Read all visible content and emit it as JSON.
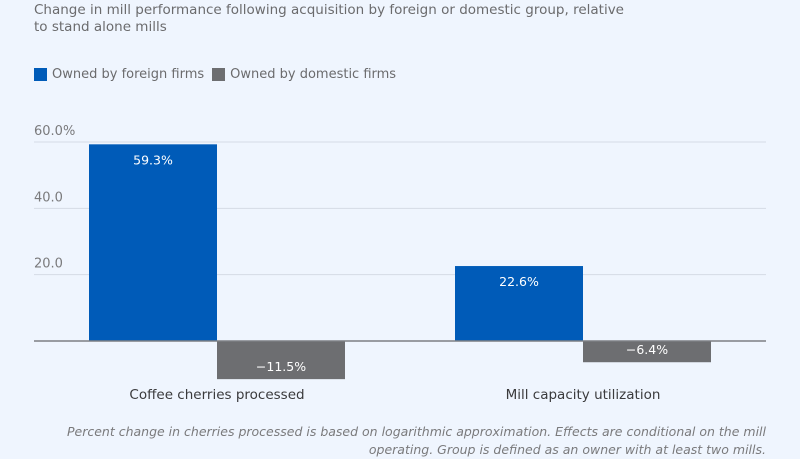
{
  "title": "Change in mill performance following acquisition by foreign or domestic group, relative to stand alone mills",
  "legend": [
    {
      "label": "Owned by foreign firms",
      "color": "#005bb8"
    },
    {
      "label": "Owned by domestic firms",
      "color": "#6d6e71"
    }
  ],
  "note": "Percent change in cherries processed is based on logarithmic approximation. Effects are conditional on the mill operating. Group is defined as an owner with at least two mills.",
  "chart_data": {
    "type": "bar",
    "title": "Change in mill performance following acquisition by foreign or domestic group, relative to stand alone mills",
    "categories": [
      "Coffee cherries processed",
      "Mill capacity utilization"
    ],
    "series": [
      {
        "name": "Owned by foreign firms",
        "color": "#005bb8",
        "values": [
          59.3,
          22.6
        ],
        "labels": [
          "59.3%",
          "22.6%"
        ]
      },
      {
        "name": "Owned by domestic firms",
        "color": "#6d6e71",
        "values": [
          -11.5,
          -6.4
        ],
        "labels": [
          "−11.5%",
          "−6.4%"
        ]
      }
    ],
    "yticks": [
      0,
      20,
      40,
      60
    ],
    "ytick_labels": [
      "",
      "20.0",
      "40.0",
      "60.0%"
    ],
    "ylim": [
      -12,
      60
    ],
    "xlabel": "",
    "ylabel": "",
    "grid": true,
    "legend_position": "top-left"
  }
}
